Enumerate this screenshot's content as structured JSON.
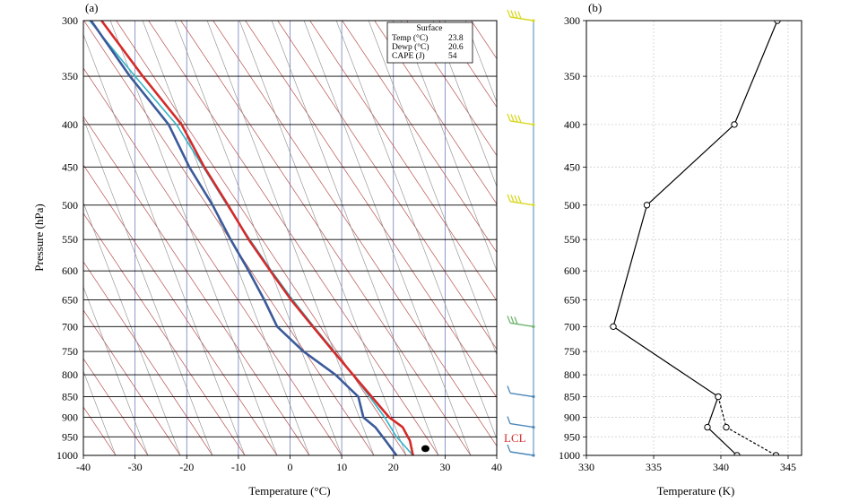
{
  "panel_a_label": "(a)",
  "panel_b_label": "(b)",
  "lcl_label": "LCL",
  "surface_box": {
    "title": "Surface",
    "rows": [
      {
        "label": "Temp (°C)",
        "value": "23.8"
      },
      {
        "label": "Dewp (°C)",
        "value": "20.6"
      },
      {
        "label": "CAPE (J)",
        "value": "54"
      }
    ]
  },
  "colors": {
    "temperature": "#d42a2a",
    "dewpoint": "#3c5a9a",
    "parcel": "#33b5c6",
    "isotherm": "#6f7fb8",
    "dry_adiabat": "#b85050",
    "moist_adiabat": "#8a8a8a",
    "isobar": "#000000",
    "wind_low": "#4a86b8",
    "wind_mid": "#6db36d",
    "wind_high": "#d8d820"
  },
  "chart_data": [
    {
      "type": "line",
      "title": "",
      "xlabel": "Temperature (°C)",
      "ylabel": "Pressure (hPa)",
      "xlim": [
        -40,
        40
      ],
      "ylim": [
        1000,
        300
      ],
      "y_scale": "log",
      "x_ticks": [
        -40,
        -30,
        -20,
        -10,
        0,
        10,
        20,
        30,
        40
      ],
      "y_ticks": [
        300,
        350,
        400,
        450,
        500,
        550,
        600,
        650,
        700,
        750,
        800,
        850,
        900,
        950,
        1000
      ],
      "grid": true,
      "series": [
        {
          "key": "temperature",
          "pressure": [
            1000,
            960,
            925,
            900,
            850,
            800,
            750,
            700,
            650,
            600,
            550,
            500,
            450,
            400,
            350,
            300
          ],
          "values": [
            23.8,
            23.2,
            21.8,
            19.2,
            15.8,
            12.2,
            8.4,
            4.4,
            0.2,
            -3.8,
            -8.0,
            -12.0,
            -16.6,
            -21.0,
            -28.5,
            -36.5
          ]
        },
        {
          "key": "dewpoint",
          "pressure": [
            1000,
            960,
            925,
            900,
            850,
            800,
            750,
            700,
            650,
            600,
            550,
            500,
            450,
            400,
            350,
            300
          ],
          "values": [
            20.6,
            18.5,
            16.5,
            14.2,
            13.2,
            8.8,
            2.6,
            -2.5,
            -5.0,
            -8.0,
            -11.5,
            -15.0,
            -19.5,
            -23.5,
            -31.0,
            -38.5
          ]
        },
        {
          "key": "parcel",
          "pressure": [
            1000,
            950,
            900,
            850,
            800,
            750,
            700,
            650,
            600,
            550,
            500,
            450,
            400,
            350,
            300
          ],
          "values": [
            23.8,
            20.6,
            18.3,
            15.4,
            12.2,
            8.6,
            4.6,
            0.5,
            -3.6,
            -7.8,
            -12.2,
            -16.8,
            -22.0,
            -30.0,
            -38.8
          ]
        }
      ],
      "annotations": [
        {
          "text": "LCL",
          "pressure": 955
        }
      ],
      "wind_barbs_pressure": [
        300,
        400,
        500,
        700,
        850,
        925,
        1000
      ],
      "marker": {
        "temperature": 26.2,
        "pressure": 985
      }
    },
    {
      "type": "line",
      "title": "",
      "xlabel": "Temperature (K)",
      "ylabel": "",
      "xlim": [
        330,
        346
      ],
      "ylim": [
        1000,
        300
      ],
      "y_scale": "log",
      "x_ticks": [
        330,
        335,
        340,
        345
      ],
      "y_ticks": [
        300,
        350,
        400,
        450,
        500,
        550,
        600,
        650,
        700,
        750,
        800,
        850,
        900,
        950,
        1000
      ],
      "grid": true,
      "series": [
        {
          "key": "solid",
          "style": "solid",
          "pressure": [
            300,
            400,
            500,
            700,
            850,
            925,
            1000
          ],
          "values": [
            344.2,
            341.0,
            334.5,
            332.0,
            339.8,
            339.0,
            341.2
          ]
        },
        {
          "key": "dashed",
          "style": "dashed",
          "pressure": [
            850,
            925,
            1000
          ],
          "values": [
            339.8,
            340.4,
            344.1
          ]
        }
      ]
    }
  ]
}
